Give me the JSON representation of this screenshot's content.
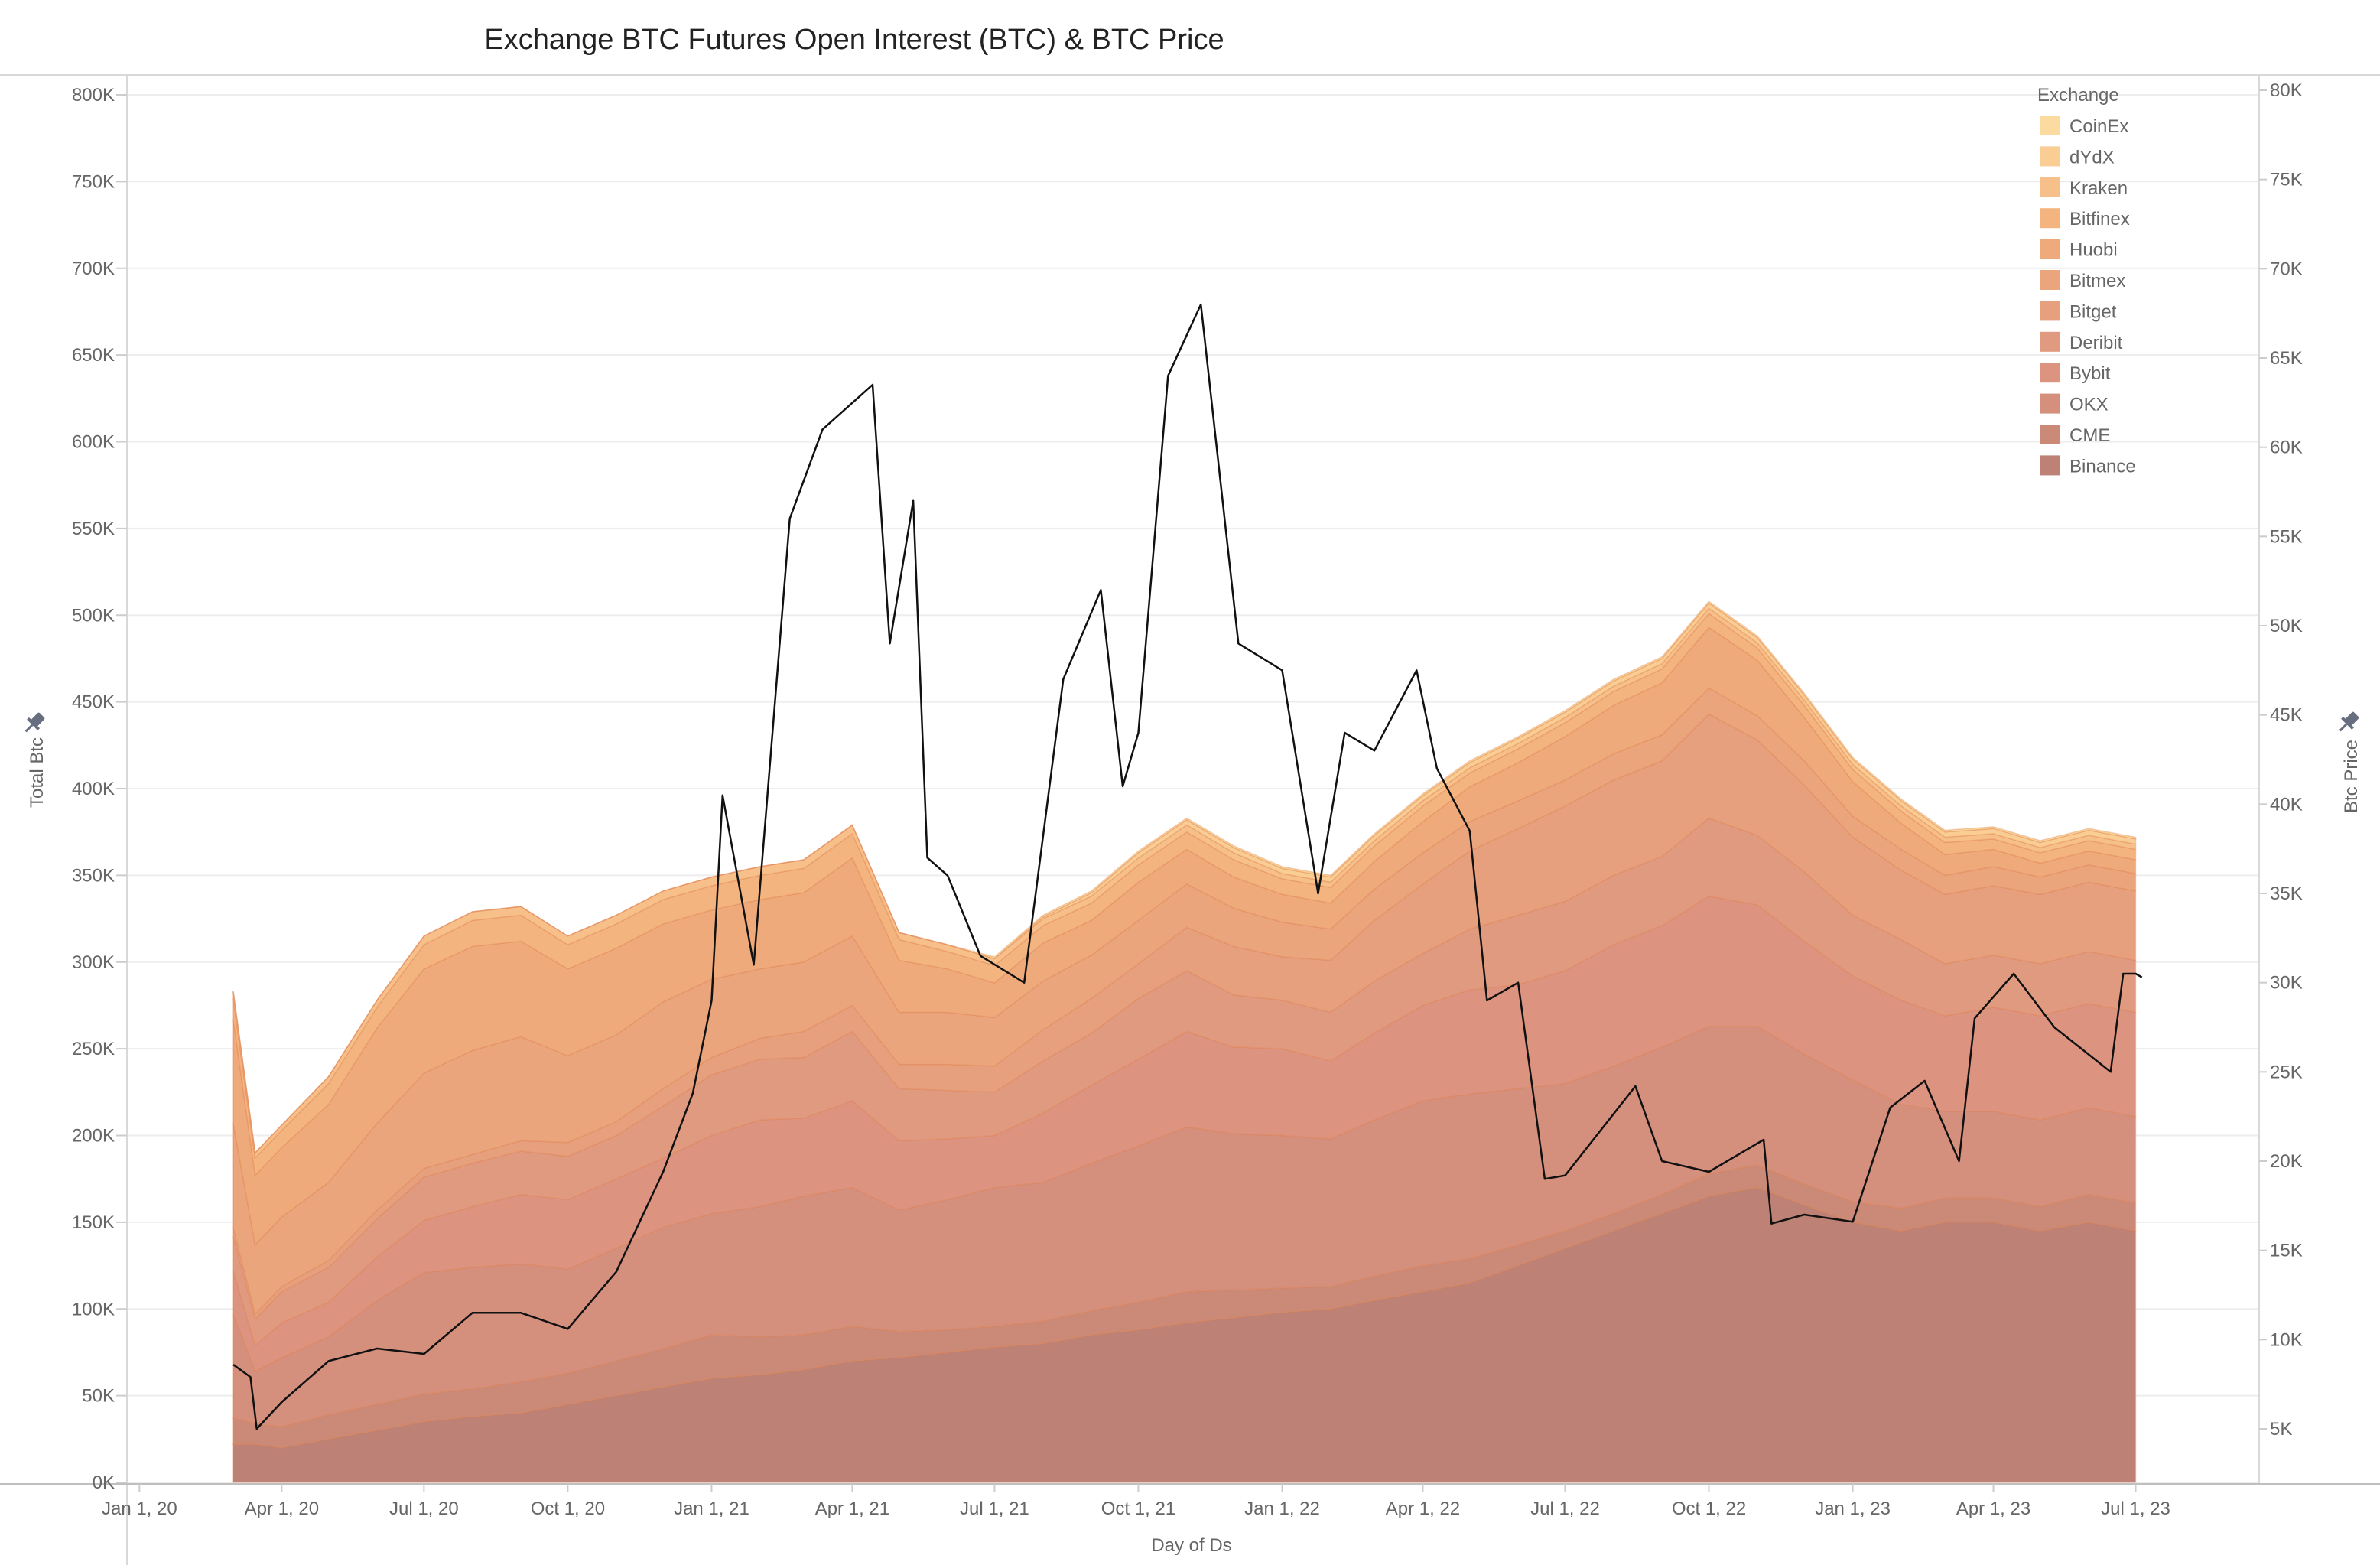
{
  "chart_data": {
    "type": "area",
    "title": "Exchange BTC Futures Open Interest (BTC) & BTC Price",
    "xlabel": "Day of Ds",
    "ylabel": "Total Btc",
    "y2label": "Btc Price",
    "x_ticks": [
      "Jan 1, 20",
      "Apr 1, 20",
      "Jul 1, 20",
      "Oct 1, 20",
      "Jan 1, 21",
      "Apr 1, 21",
      "Jul 1, 21",
      "Oct 1, 21",
      "Jan 1, 22",
      "Apr 1, 22",
      "Jul 1, 22",
      "Oct 1, 22",
      "Jan 1, 23",
      "Apr 1, 23",
      "Jul 1, 23"
    ],
    "x_tick_dates": [
      "2020-01-01",
      "2020-04-01",
      "2020-07-01",
      "2020-10-01",
      "2021-01-01",
      "2021-04-01",
      "2021-07-01",
      "2021-10-01",
      "2022-01-01",
      "2022-04-01",
      "2022-07-01",
      "2022-10-01",
      "2023-01-01",
      "2023-04-01",
      "2023-07-01"
    ],
    "x_range": [
      "2019-12-24",
      "2023-09-18"
    ],
    "y_ticks": [
      "0K",
      "50K",
      "100K",
      "150K",
      "200K",
      "250K",
      "300K",
      "350K",
      "400K",
      "450K",
      "500K",
      "550K",
      "600K",
      "650K",
      "700K",
      "750K",
      "800K"
    ],
    "ylim": [
      0,
      800000
    ],
    "y2_ticks": [
      "5K",
      "10K",
      "15K",
      "20K",
      "25K",
      "30K",
      "35K",
      "40K",
      "45K",
      "50K",
      "55K",
      "60K",
      "65K",
      "70K",
      "75K",
      "80K"
    ],
    "y2lim": [
      1500,
      80000
    ],
    "gridlines": true,
    "legend_title": "Exchange",
    "legend_position": "top-right",
    "legend": [
      "CoinEx",
      "dYdX",
      "Kraken",
      "Bitfinex",
      "Huobi",
      "Bitmex",
      "Bitget",
      "Deribit",
      "Bybit",
      "OKX",
      "CME",
      "Binance"
    ],
    "dates": [
      "2020-03-01",
      "2020-03-15",
      "2020-04-01",
      "2020-05-01",
      "2020-06-01",
      "2020-07-01",
      "2020-08-01",
      "2020-09-01",
      "2020-10-01",
      "2020-11-01",
      "2020-12-01",
      "2021-01-01",
      "2021-02-01",
      "2021-03-01",
      "2021-04-01",
      "2021-05-01",
      "2021-06-01",
      "2021-07-01",
      "2021-08-01",
      "2021-09-01",
      "2021-10-01",
      "2021-11-01",
      "2021-12-01",
      "2022-01-01",
      "2022-02-01",
      "2022-03-01",
      "2022-04-01",
      "2022-05-01",
      "2022-06-01",
      "2022-07-01",
      "2022-08-01",
      "2022-09-01",
      "2022-10-01",
      "2022-11-01",
      "2022-12-01",
      "2023-01-01",
      "2023-02-01",
      "2023-03-01",
      "2023-04-01",
      "2023-05-01",
      "2023-06-01",
      "2023-07-01"
    ],
    "series": [
      {
        "name": "Binance",
        "color": "#bd8275",
        "values": [
          22000,
          22000,
          20000,
          25000,
          30000,
          35000,
          38000,
          40000,
          45000,
          50000,
          55000,
          60000,
          62000,
          65000,
          70000,
          72000,
          75000,
          78000,
          80000,
          85000,
          88000,
          92000,
          95000,
          98000,
          100000,
          105000,
          110000,
          115000,
          125000,
          135000,
          145000,
          155000,
          165000,
          170000,
          160000,
          150000,
          145000,
          150000,
          150000,
          145000,
          150000,
          145000
        ]
      },
      {
        "name": "CME",
        "color": "#cb8a77",
        "values": [
          15000,
          12000,
          12000,
          14000,
          15000,
          16000,
          16000,
          18000,
          18000,
          20000,
          22000,
          25000,
          22000,
          20000,
          20000,
          15000,
          13000,
          12000,
          13000,
          14000,
          16000,
          18000,
          16000,
          14000,
          13000,
          14000,
          15000,
          14000,
          12000,
          10000,
          10000,
          11000,
          13000,
          13000,
          12000,
          12000,
          13000,
          14000,
          14000,
          14000,
          16000,
          16000
        ]
      },
      {
        "name": "OKX",
        "color": "#d48f7d",
        "values": [
          60000,
          30000,
          40000,
          45000,
          60000,
          70000,
          70000,
          68000,
          60000,
          65000,
          70000,
          70000,
          75000,
          80000,
          80000,
          70000,
          75000,
          80000,
          80000,
          85000,
          90000,
          95000,
          90000,
          88000,
          85000,
          90000,
          95000,
          95000,
          90000,
          85000,
          85000,
          85000,
          85000,
          80000,
          75000,
          70000,
          60000,
          50000,
          50000,
          50000,
          50000,
          50000
        ]
      },
      {
        "name": "Bybit",
        "color": "#dc9380",
        "values": [
          25000,
          15000,
          20000,
          20000,
          25000,
          30000,
          35000,
          40000,
          40000,
          40000,
          40000,
          45000,
          50000,
          45000,
          50000,
          40000,
          35000,
          30000,
          40000,
          45000,
          50000,
          55000,
          50000,
          50000,
          45000,
          50000,
          55000,
          60000,
          60000,
          65000,
          70000,
          70000,
          75000,
          70000,
          65000,
          60000,
          60000,
          55000,
          60000,
          60000,
          60000,
          60000
        ]
      },
      {
        "name": "Deribit",
        "color": "#e09a7f",
        "values": [
          20000,
          15000,
          18000,
          20000,
          22000,
          25000,
          25000,
          25000,
          25000,
          25000,
          30000,
          35000,
          35000,
          35000,
          40000,
          30000,
          28000,
          25000,
          30000,
          30000,
          35000,
          35000,
          30000,
          28000,
          28000,
          30000,
          30000,
          35000,
          40000,
          40000,
          40000,
          40000,
          45000,
          40000,
          40000,
          35000,
          35000,
          30000,
          30000,
          30000,
          30000,
          30000
        ]
      },
      {
        "name": "Bitget",
        "color": "#e6a07e",
        "values": [
          5000,
          3000,
          3000,
          4000,
          5000,
          5000,
          5000,
          6000,
          8000,
          8000,
          10000,
          10000,
          12000,
          15000,
          15000,
          14000,
          15000,
          15000,
          18000,
          20000,
          20000,
          25000,
          28000,
          25000,
          30000,
          35000,
          40000,
          45000,
          50000,
          55000,
          55000,
          55000,
          60000,
          55000,
          50000,
          45000,
          40000,
          40000,
          40000,
          40000,
          40000,
          40000
        ]
      },
      {
        "name": "Bitmex",
        "color": "#eba57c",
        "values": [
          60000,
          40000,
          40000,
          45000,
          50000,
          55000,
          60000,
          60000,
          50000,
          50000,
          50000,
          45000,
          40000,
          40000,
          40000,
          30000,
          30000,
          28000,
          28000,
          25000,
          25000,
          25000,
          22000,
          20000,
          18000,
          18000,
          18000,
          17000,
          16000,
          15000,
          15000,
          15000,
          15000,
          14000,
          14000,
          12000,
          12000,
          11000,
          11000,
          10000,
          10000,
          10000
        ]
      },
      {
        "name": "Huobi",
        "color": "#efaa7c",
        "values": [
          60000,
          40000,
          40000,
          45000,
          55000,
          60000,
          60000,
          55000,
          50000,
          50000,
          45000,
          40000,
          40000,
          40000,
          45000,
          30000,
          25000,
          20000,
          22000,
          20000,
          22000,
          20000,
          18000,
          16000,
          15000,
          16000,
          18000,
          20000,
          22000,
          25000,
          28000,
          30000,
          35000,
          32000,
          25000,
          20000,
          15000,
          12000,
          10000,
          8000,
          8000,
          8000
        ]
      },
      {
        "name": "Bitfinex",
        "color": "#f3b47f",
        "values": [
          12000,
          10000,
          10000,
          12000,
          12000,
          14000,
          15000,
          15000,
          14000,
          14000,
          14000,
          14000,
          14000,
          14000,
          14000,
          12000,
          10000,
          10000,
          10000,
          10000,
          10000,
          10000,
          10000,
          9000,
          9000,
          9000,
          9000,
          8000,
          8000,
          8000,
          8000,
          8000,
          8000,
          7000,
          7000,
          7000,
          7000,
          7000,
          6000,
          6000,
          6000,
          6000
        ]
      },
      {
        "name": "Kraken",
        "color": "#f7c08a",
        "values": [
          4000,
          3000,
          3000,
          4000,
          4000,
          5000,
          5000,
          5000,
          5000,
          5000,
          5000,
          5000,
          5000,
          5000,
          5000,
          4000,
          4000,
          4000,
          4000,
          4000,
          4000,
          4000,
          4000,
          3000,
          3000,
          3000,
          3000,
          3000,
          3000,
          3000,
          3000,
          3000,
          3000,
          3000,
          3000,
          3000,
          3000,
          3000,
          3000,
          3000,
          3000,
          3000
        ]
      },
      {
        "name": "dYdX",
        "color": "#f9cd94",
        "values": [
          0,
          0,
          0,
          0,
          0,
          0,
          0,
          0,
          0,
          0,
          0,
          0,
          0,
          0,
          0,
          0,
          0,
          0,
          1000,
          2000,
          3000,
          3000,
          3000,
          3000,
          3000,
          3000,
          3000,
          3000,
          3000,
          3000,
          3000,
          3000,
          3000,
          3000,
          3000,
          3000,
          3000,
          3000,
          3000,
          3000,
          3000,
          3000
        ]
      },
      {
        "name": "CoinEx",
        "color": "#fbdb9f",
        "values": [
          0,
          0,
          0,
          0,
          0,
          0,
          0,
          0,
          0,
          0,
          0,
          0,
          0,
          0,
          0,
          0,
          0,
          1000,
          1000,
          1000,
          1000,
          1000,
          1000,
          1000,
          1000,
          1000,
          1000,
          1000,
          1000,
          1000,
          1000,
          1000,
          1000,
          1000,
          1000,
          1000,
          1000,
          1000,
          1000,
          1000,
          1000,
          1000
        ]
      }
    ],
    "price_series": {
      "name": "Btc Price",
      "color": "#111111",
      "points": [
        [
          "2020-03-01",
          8600
        ],
        [
          "2020-03-12",
          7900
        ],
        [
          "2020-03-16",
          5000
        ],
        [
          "2020-04-01",
          6500
        ],
        [
          "2020-05-01",
          8800
        ],
        [
          "2020-06-01",
          9500
        ],
        [
          "2020-07-01",
          9200
        ],
        [
          "2020-08-01",
          11500
        ],
        [
          "2020-09-01",
          11500
        ],
        [
          "2020-10-01",
          10600
        ],
        [
          "2020-11-01",
          13800
        ],
        [
          "2020-12-01",
          19400
        ],
        [
          "2020-12-20",
          23800
        ],
        [
          "2021-01-01",
          29000
        ],
        [
          "2021-01-08",
          40500
        ],
        [
          "2021-01-28",
          31000
        ],
        [
          "2021-02-20",
          56000
        ],
        [
          "2021-03-13",
          61000
        ],
        [
          "2021-04-14",
          63500
        ],
        [
          "2021-04-25",
          49000
        ],
        [
          "2021-05-10",
          57000
        ],
        [
          "2021-05-19",
          37000
        ],
        [
          "2021-06-01",
          36000
        ],
        [
          "2021-06-22",
          31500
        ],
        [
          "2021-07-20",
          30000
        ],
        [
          "2021-08-14",
          47000
        ],
        [
          "2021-09-07",
          52000
        ],
        [
          "2021-09-21",
          41000
        ],
        [
          "2021-10-01",
          44000
        ],
        [
          "2021-10-20",
          64000
        ],
        [
          "2021-11-10",
          68000
        ],
        [
          "2021-12-04",
          49000
        ],
        [
          "2022-01-01",
          47500
        ],
        [
          "2022-01-24",
          35000
        ],
        [
          "2022-02-10",
          44000
        ],
        [
          "2022-03-01",
          43000
        ],
        [
          "2022-03-28",
          47500
        ],
        [
          "2022-04-10",
          42000
        ],
        [
          "2022-05-01",
          38500
        ],
        [
          "2022-05-12",
          29000
        ],
        [
          "2022-06-01",
          30000
        ],
        [
          "2022-06-18",
          19000
        ],
        [
          "2022-07-01",
          19200
        ],
        [
          "2022-08-15",
          24200
        ],
        [
          "2022-09-01",
          20000
        ],
        [
          "2022-10-01",
          19400
        ],
        [
          "2022-11-05",
          21200
        ],
        [
          "2022-11-10",
          16500
        ],
        [
          "2022-12-01",
          17000
        ],
        [
          "2023-01-01",
          16600
        ],
        [
          "2023-01-25",
          23000
        ],
        [
          "2023-02-16",
          24500
        ],
        [
          "2023-03-10",
          20000
        ],
        [
          "2023-03-20",
          28000
        ],
        [
          "2023-04-14",
          30500
        ],
        [
          "2023-05-10",
          27500
        ],
        [
          "2023-06-15",
          25000
        ],
        [
          "2023-06-23",
          30500
        ],
        [
          "2023-07-01",
          30500
        ],
        [
          "2023-07-05",
          30300
        ]
      ]
    }
  }
}
